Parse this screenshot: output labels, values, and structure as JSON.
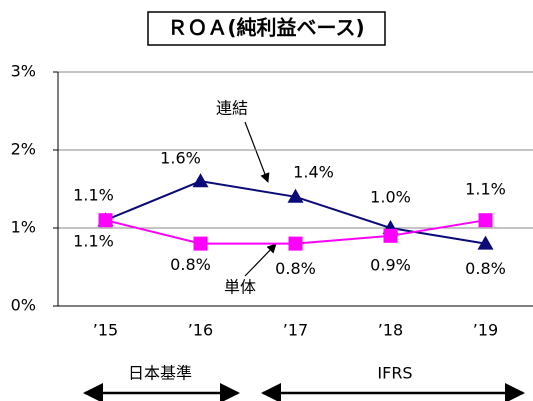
{
  "chart_data": {
    "type": "line",
    "title": "ＲＯＡ(純利益ベース)",
    "categories": [
      "’15",
      "’16",
      "’17",
      "’18",
      "’19"
    ],
    "series": [
      {
        "name": "連結",
        "color": "#0a0a78",
        "values": [
          1.1,
          1.6,
          1.4,
          1.0,
          0.8
        ],
        "value_labels": [
          "1.1%",
          "1.6%",
          "1.4%",
          "1.0%",
          "0.8%"
        ]
      },
      {
        "name": "単体",
        "color": "#ff00ff",
        "values": [
          1.1,
          0.8,
          0.8,
          0.9,
          1.1
        ],
        "value_labels": [
          "1.1%",
          "0.8%",
          "0.8%",
          "0.9%",
          "1.1%"
        ]
      }
    ],
    "ylim": [
      0,
      3
    ],
    "yticks": [
      {
        "value": 0,
        "label": "0%"
      },
      {
        "value": 1,
        "label": "1%"
      },
      {
        "value": 2,
        "label": "2%"
      },
      {
        "value": 3,
        "label": "3%"
      }
    ],
    "grid": true,
    "periods": [
      "日本基準",
      "IFRS"
    ]
  }
}
